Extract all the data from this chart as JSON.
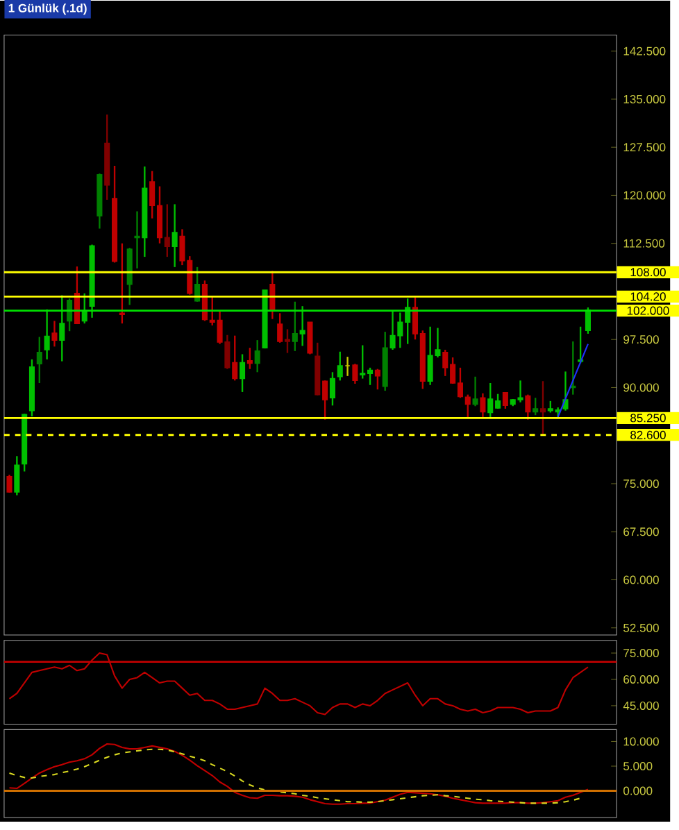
{
  "chart_data": [
    {
      "type": "candlestick",
      "title": "1 Günlük (.1d)",
      "categories": [
        null,
        null,
        null,
        null,
        null,
        null,
        null,
        null,
        null,
        null,
        null,
        null,
        null,
        null,
        null,
        null,
        null,
        null,
        null,
        null,
        null,
        null,
        null,
        null,
        null,
        null,
        null,
        null,
        null,
        null,
        null,
        null,
        null,
        null,
        null,
        null,
        null,
        null,
        null,
        null,
        null,
        null,
        null,
        null,
        null,
        null,
        null,
        null,
        null,
        null,
        null,
        null,
        null,
        null,
        null,
        null,
        null,
        null,
        null,
        null,
        null,
        null,
        null,
        null,
        null,
        null,
        null,
        null,
        null,
        null,
        null,
        null,
        null,
        null,
        null,
        null,
        null,
        null
      ],
      "ohlc": [
        [
          76.1,
          76.4,
          73.6,
          73.7
        ],
        [
          73.7,
          79.3,
          73.2,
          77.9
        ],
        [
          78.1,
          85.9,
          76.9,
          85.8
        ],
        [
          86.4,
          94.4,
          85.5,
          93.2
        ],
        [
          93.7,
          97.9,
          90.7,
          95.5
        ],
        [
          95.9,
          102.2,
          94.4,
          98.0
        ],
        [
          98.5,
          100.4,
          96.4,
          97.4
        ],
        [
          97.4,
          104.4,
          94.1,
          100.0
        ],
        [
          100.4,
          103.9,
          98.8,
          103.6
        ],
        [
          104.7,
          108.9,
          99.9,
          100.0
        ],
        [
          100.4,
          104.7,
          100.0,
          101.9
        ],
        [
          102.7,
          112.3,
          100.9,
          112.1
        ],
        [
          116.8,
          123.4,
          114.8,
          123.2
        ],
        [
          128.1,
          132.6,
          119.3,
          121.6
        ],
        [
          119.5,
          124.6,
          109.5,
          109.7
        ],
        [
          101.6,
          112.5,
          100.0,
          101.4
        ],
        [
          106.1,
          111.8,
          102.9,
          111.6
        ],
        [
          113.6,
          117.5,
          108.6,
          113.4
        ],
        [
          113.4,
          124.5,
          110.4,
          121.1
        ],
        [
          122.1,
          123.8,
          116.4,
          118.4
        ],
        [
          118.4,
          121.4,
          112.5,
          113.4
        ],
        [
          113.4,
          118.6,
          110.4,
          112.0
        ],
        [
          112.0,
          118.6,
          108.8,
          114.2
        ],
        [
          113.6,
          114.7,
          109.1,
          109.8
        ],
        [
          109.8,
          110.5,
          104.5,
          104.7
        ],
        [
          103.5,
          108.8,
          103.4,
          106.1
        ],
        [
          106.1,
          106.7,
          100.4,
          100.6
        ],
        [
          100.5,
          104.3,
          99.7,
          100.2
        ],
        [
          100.5,
          101.9,
          96.8,
          97.1
        ],
        [
          97.1,
          98.2,
          92.9,
          93.1
        ],
        [
          93.9,
          98.1,
          91.1,
          91.4
        ],
        [
          91.4,
          95.2,
          89.3,
          93.9
        ],
        [
          94.2,
          96.2,
          92.9,
          93.8
        ],
        [
          93.8,
          97.4,
          92.4,
          95.7
        ],
        [
          96.2,
          105.2,
          96.1,
          105.2
        ],
        [
          106.1,
          108.2,
          100.7,
          102.1
        ],
        [
          99.9,
          101.6,
          97.0,
          97.2
        ],
        [
          97.5,
          99.1,
          95.4,
          97.2
        ],
        [
          97.2,
          103.4,
          95.7,
          98.4
        ],
        [
          98.4,
          102.7,
          96.5,
          98.9
        ],
        [
          100.2,
          100.2,
          95.2,
          95.4
        ],
        [
          94.9,
          97.0,
          88.8,
          88.9
        ],
        [
          91.0,
          91.1,
          85.0,
          88.1
        ],
        [
          88.4,
          92.4,
          87.2,
          91.4
        ],
        [
          91.7,
          95.6,
          91.1,
          93.4
        ],
        [
          93.4,
          94.8,
          91.8,
          93.4
        ],
        [
          93.5,
          93.7,
          90.6,
          91.1
        ],
        [
          92.0,
          96.6,
          91.4,
          92.2
        ],
        [
          92.2,
          93.1,
          90.4,
          92.7
        ],
        [
          92.7,
          92.9,
          89.7,
          91.8
        ],
        [
          90.2,
          98.7,
          89.5,
          96.2
        ],
        [
          96.2,
          101.9,
          95.9,
          98.1
        ],
        [
          98.1,
          101.7,
          96.2,
          100.2
        ],
        [
          100.2,
          103.9,
          96.8,
          102.5
        ],
        [
          102.5,
          104.1,
          97.5,
          98.4
        ],
        [
          98.4,
          98.9,
          89.8,
          91.0
        ],
        [
          91.0,
          99.5,
          90.4,
          95.0
        ],
        [
          95.0,
          99.3,
          94.7,
          95.9
        ],
        [
          95.5,
          95.9,
          91.8,
          93.1
        ],
        [
          93.6,
          94.7,
          90.6,
          90.7
        ],
        [
          90.7,
          93.1,
          88.4,
          88.6
        ],
        [
          88.5,
          88.9,
          85.4,
          87.4
        ],
        [
          87.4,
          91.7,
          87.1,
          88.2
        ],
        [
          88.4,
          89.1,
          85.4,
          86.2
        ],
        [
          86.1,
          90.7,
          85.4,
          88.2
        ],
        [
          86.8,
          89.0,
          86.7,
          87.9
        ],
        [
          89.2,
          89.2,
          86.7,
          87.2
        ],
        [
          87.4,
          88.2,
          87.1,
          88.1
        ],
        [
          88.1,
          91.1,
          87.7,
          88.4
        ],
        [
          88.7,
          88.9,
          85.0,
          86.2
        ],
        [
          86.2,
          88.4,
          85.7,
          86.7
        ],
        [
          86.7,
          91.0,
          82.7,
          86.2
        ],
        [
          86.4,
          87.9,
          86.1,
          86.7
        ],
        [
          86.2,
          86.9,
          85.4,
          86.5
        ],
        [
          86.7,
          92.5,
          86.4,
          88.1
        ],
        [
          90.0,
          97.2,
          88.9,
          90.2
        ],
        [
          94.3,
          99.5,
          93.8,
          94.1
        ],
        [
          98.9,
          102.5,
          98.4,
          102.1
        ]
      ],
      "colors": [
        "#c00000",
        "#00c000",
        "#00c000",
        "#00c000",
        "#008000",
        "#00c000",
        "#c00000",
        "#00c000",
        "#008000",
        "#c00000",
        "#00c000",
        "#00c000",
        "#008000",
        "#800000",
        "#c00000",
        "#c00000",
        "#008000",
        "#008000",
        "#00c000",
        "#c00000",
        "#c00000",
        "#800000",
        "#00c000",
        "#c00000",
        "#c00000",
        "#008000",
        "#c00000",
        "#c00000",
        "#c00000",
        "#800000",
        "#c00000",
        "#00c000",
        "#c00000",
        "#008000",
        "#00c000",
        "#c00000",
        "#c00000",
        "#800000",
        "#008000",
        "#00c000",
        "#c00000",
        "#800000",
        "#c00000",
        "#00c000",
        "#00c000",
        "#c8c800",
        "#c00000",
        "#00c000",
        "#00c000",
        "#c00000",
        "#008000",
        "#00c000",
        "#00c000",
        "#00c000",
        "#c00000",
        "#c00000",
        "#00c000",
        "#00c000",
        "#c00000",
        "#c00000",
        "#c00000",
        "#c00000",
        "#008000",
        "#c00000",
        "#00c000",
        "#00c000",
        "#c00000",
        "#00c000",
        "#00c000",
        "#c00000",
        "#008000",
        "#800000",
        "#00c000",
        "#00c000",
        "#00c000",
        "#008000",
        "#00c000",
        "#00c000"
      ],
      "series": [
        {
          "type": "line",
          "values": [
            null,
            null,
            null,
            null,
            null,
            null,
            null,
            null,
            null,
            null,
            null,
            null,
            null,
            null,
            null,
            null,
            null,
            null,
            null,
            null,
            null,
            null,
            null,
            null,
            null,
            null,
            null,
            null,
            null,
            null,
            null,
            null,
            null,
            null,
            null,
            null,
            null,
            null,
            null,
            null,
            null,
            null,
            null,
            null,
            null,
            null,
            null,
            null,
            null,
            null,
            null,
            null,
            null,
            null,
            null,
            null,
            null,
            null,
            null,
            null,
            null,
            null,
            null,
            null,
            null,
            null,
            null,
            null,
            null,
            null,
            null,
            null,
            null,
            85.4,
            null,
            null,
            null,
            96.8
          ],
          "color": "#1e32ff"
        }
      ],
      "ylim": [
        51.4,
        145
      ],
      "yticks": [
        {
          "value": 142.5,
          "label": "142.500"
        },
        {
          "value": 135,
          "label": "135.000"
        },
        {
          "value": 127.5,
          "label": "127.500"
        },
        {
          "value": 120,
          "label": "120.000"
        },
        {
          "value": 112.5,
          "label": "112.500"
        },
        {
          "value": 97.5,
          "label": "97.500"
        },
        {
          "value": 90,
          "label": "90.000"
        },
        {
          "value": 75,
          "label": "75.000"
        },
        {
          "value": 67.5,
          "label": "67.500"
        },
        {
          "value": 60,
          "label": "60.000"
        },
        {
          "value": 52.5,
          "label": "52.500"
        }
      ],
      "tick_labels": "y",
      "ref_lines": [
        {
          "axis": "y",
          "value": 108,
          "label": "108.00",
          "color": "#ffff00"
        },
        {
          "axis": "y",
          "value": 104.2,
          "label": "104.20",
          "color": "#ffff00"
        },
        {
          "axis": "y",
          "value": 102,
          "label": "102.000",
          "color": "#00e000"
        },
        {
          "axis": "y",
          "value": 85.25,
          "label": "85.250",
          "color": "#ffff00"
        },
        {
          "axis": "y",
          "value": 82.6,
          "label": "82.600",
          "color": "#ffff00",
          "line_style": "dashed"
        }
      ]
    },
    {
      "type": "line",
      "categories": [
        null,
        null,
        null,
        null,
        null,
        null,
        null,
        null,
        null,
        null,
        null,
        null,
        null,
        null,
        null,
        null,
        null,
        null,
        null,
        null,
        null,
        null,
        null,
        null,
        null,
        null,
        null,
        null,
        null,
        null,
        null,
        null,
        null,
        null,
        null,
        null,
        null,
        null,
        null,
        null,
        null,
        null,
        null,
        null,
        null,
        null,
        null,
        null,
        null,
        null,
        null,
        null,
        null,
        null,
        null,
        null,
        null,
        null,
        null,
        null,
        null,
        null,
        null,
        null,
        null,
        null,
        null,
        null,
        null,
        null,
        null,
        null,
        null,
        null,
        null,
        null,
        null,
        null
      ],
      "series": [
        {
          "color": "#c00000",
          "values": [
            49,
            52,
            58,
            64,
            65,
            66,
            67,
            66,
            68,
            65,
            66,
            71,
            75,
            74,
            62,
            55,
            60,
            61,
            64,
            61,
            58,
            59,
            59,
            55,
            51,
            52,
            48,
            48,
            46,
            43,
            43,
            44,
            45,
            46,
            55,
            52,
            48,
            48,
            49,
            47,
            45,
            41,
            40,
            44,
            46,
            46,
            44,
            46,
            45,
            48,
            52,
            54,
            56,
            58,
            51,
            45,
            49,
            49,
            46,
            45,
            43,
            42,
            43,
            41,
            42,
            44,
            44,
            44,
            43,
            41,
            42,
            42,
            42,
            44,
            54,
            61,
            64,
            67
          ]
        }
      ],
      "ylim": [
        34.5,
        82.2
      ],
      "yticks": [
        {
          "value": 75,
          "label": "75.000"
        },
        {
          "value": 60,
          "label": "60.000"
        },
        {
          "value": 45,
          "label": "45.000"
        }
      ],
      "tick_labels": "y",
      "ref_lines": [
        {
          "axis": "y",
          "value": 70,
          "color": "#c00000"
        }
      ]
    },
    {
      "type": "line",
      "categories": [
        null,
        null,
        null,
        null,
        null,
        null,
        null,
        null,
        null,
        null,
        null,
        null,
        null,
        null,
        null,
        null,
        null,
        null,
        null,
        null,
        null,
        null,
        null,
        null,
        null,
        null,
        null,
        null,
        null,
        null,
        null,
        null,
        null,
        null,
        null,
        null,
        null,
        null,
        null,
        null,
        null,
        null,
        null,
        null,
        null,
        null,
        null,
        null,
        null,
        null,
        null,
        null,
        null,
        null,
        null,
        null,
        null,
        null,
        null,
        null,
        null,
        null,
        null,
        null,
        null,
        null,
        null,
        null,
        null,
        null,
        null,
        null,
        null,
        null,
        null,
        null,
        null,
        null
      ],
      "series": [
        {
          "color": "#c00000",
          "values": [
            0.6,
            0.5,
            1.5,
            2.6,
            3.6,
            4.3,
            4.9,
            5.3,
            5.8,
            6.1,
            6.5,
            7.3,
            8.6,
            9.5,
            9.4,
            8.8,
            8.5,
            8.5,
            8.8,
            9.1,
            8.8,
            8.5,
            8.0,
            7.2,
            6.2,
            5.1,
            4.1,
            3.1,
            1.8,
            0.9,
            -0.3,
            -0.9,
            -1.4,
            -1.5,
            -0.9,
            -0.9,
            -1.0,
            -1.0,
            -1.1,
            -1.3,
            -1.8,
            -2.2,
            -2.6,
            -2.7,
            -2.7,
            -2.6,
            -2.6,
            -2.5,
            -2.5,
            -2.2,
            -1.9,
            -1.3,
            -0.7,
            -0.3,
            -0.4,
            -0.5,
            -0.6,
            -0.8,
            -1.1,
            -1.5,
            -1.8,
            -2.1,
            -2.4,
            -2.5,
            -2.5,
            -2.5,
            -2.5,
            -2.4,
            -2.4,
            -2.5,
            -2.5,
            -2.4,
            -2.2,
            -2.0,
            -1.3,
            -0.9,
            -0.3,
            0.3
          ]
        },
        {
          "color": "#d8d820",
          "line_style": "dashed",
          "values": [
            3.6,
            3.1,
            2.7,
            2.6,
            2.9,
            3.1,
            3.3,
            3.7,
            4.0,
            4.4,
            4.9,
            5.5,
            6.2,
            6.8,
            7.3,
            7.7,
            7.9,
            8.1,
            8.3,
            8.4,
            8.4,
            8.3,
            7.9,
            7.5,
            7.0,
            6.6,
            6.1,
            5.3,
            4.6,
            3.9,
            3.0,
            2.0,
            1.2,
            0.6,
            0.2,
            0.0,
            -0.2,
            -0.4,
            -0.6,
            -0.9,
            -1.1,
            -1.4,
            -1.6,
            -1.8,
            -2.0,
            -2.2,
            -2.2,
            -2.3,
            -2.3,
            -2.2,
            -2.0,
            -1.8,
            -1.6,
            -1.4,
            -1.2,
            -1.0,
            -0.9,
            -0.8,
            -1.0,
            -1.1,
            -1.3,
            -1.5,
            -1.7,
            -1.8,
            -2.0,
            -2.1,
            -2.2,
            -2.3,
            -2.4,
            -2.5,
            -2.5,
            -2.5,
            -2.5,
            -2.4,
            -2.2,
            -1.9,
            -1.5,
            null
          ]
        }
      ],
      "ylim": [
        -5.4,
        12.4
      ],
      "yticks": [
        {
          "value": 10,
          "label": "10.000"
        },
        {
          "value": 5,
          "label": "5.000"
        },
        {
          "value": 0,
          "label": "0.000"
        }
      ],
      "tick_labels": "y",
      "ref_lines": [
        {
          "axis": "y",
          "value": 0,
          "color": "#d07000"
        }
      ]
    }
  ]
}
